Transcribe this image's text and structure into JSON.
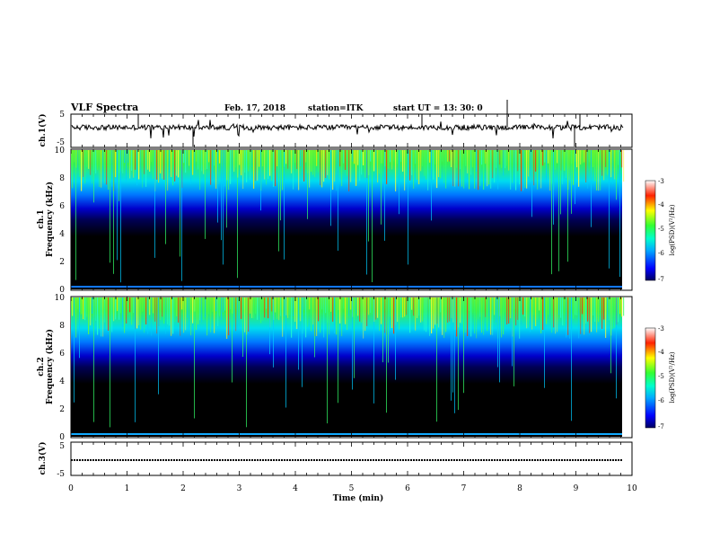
{
  "header": {
    "title": "VLF Spectra",
    "date": "Feb. 17, 2018",
    "station": "station=ITK",
    "start_ut": "start  UT  =   13: 30: 0"
  },
  "chart_data": [
    {
      "type": "line",
      "panel": "ch1_waveform",
      "ylabel": "ch.1(V)",
      "yticks": [
        "5",
        "-5"
      ],
      "ylim": [
        -5,
        5
      ],
      "xlim": [
        0,
        9.85
      ]
    },
    {
      "type": "heatmap",
      "panel": "ch1_spectrogram",
      "ylabel": "Frequency (kHz)",
      "ylabel_prefix": "ch.1",
      "ylim": [
        0,
        10
      ],
      "yticks": [
        "0",
        "2",
        "4",
        "6",
        "8",
        "10"
      ],
      "xlim": [
        0,
        9.85
      ],
      "colorbar": {
        "label": "log(PSD)(V²/Hz)",
        "ticks": [
          "-3",
          "-4",
          "-5",
          "-6",
          "-7"
        ],
        "range": [
          -7,
          -3
        ]
      }
    },
    {
      "type": "heatmap",
      "panel": "ch2_spectrogram",
      "ylabel": "Frequency (kHz)",
      "ylabel_prefix": "ch.2",
      "ylim": [
        0,
        10
      ],
      "yticks": [
        "0",
        "2",
        "4",
        "6",
        "8",
        "10"
      ],
      "xlim": [
        0,
        9.85
      ],
      "colorbar": {
        "label": "log(PSD)(V²/Hz)",
        "ticks": [
          "-3",
          "-4",
          "-5",
          "-6",
          "-7"
        ],
        "range": [
          -7,
          -3
        ]
      }
    },
    {
      "type": "line",
      "panel": "ch3_waveform",
      "ylabel": "ch.3(V)",
      "yticks": [
        "5",
        "-5"
      ],
      "ylim": [
        -5,
        5
      ],
      "xlim": [
        0,
        9.85
      ]
    }
  ],
  "xaxis": {
    "label": "Time  (min)",
    "ticks": [
      "0",
      "1",
      "2",
      "3",
      "4",
      "5",
      "6",
      "7",
      "8",
      "9",
      "10"
    ],
    "range": [
      0,
      10
    ]
  },
  "colors": {
    "background": "#ffffff",
    "axis": "#000000",
    "spectrogram_floor": "#000000"
  }
}
